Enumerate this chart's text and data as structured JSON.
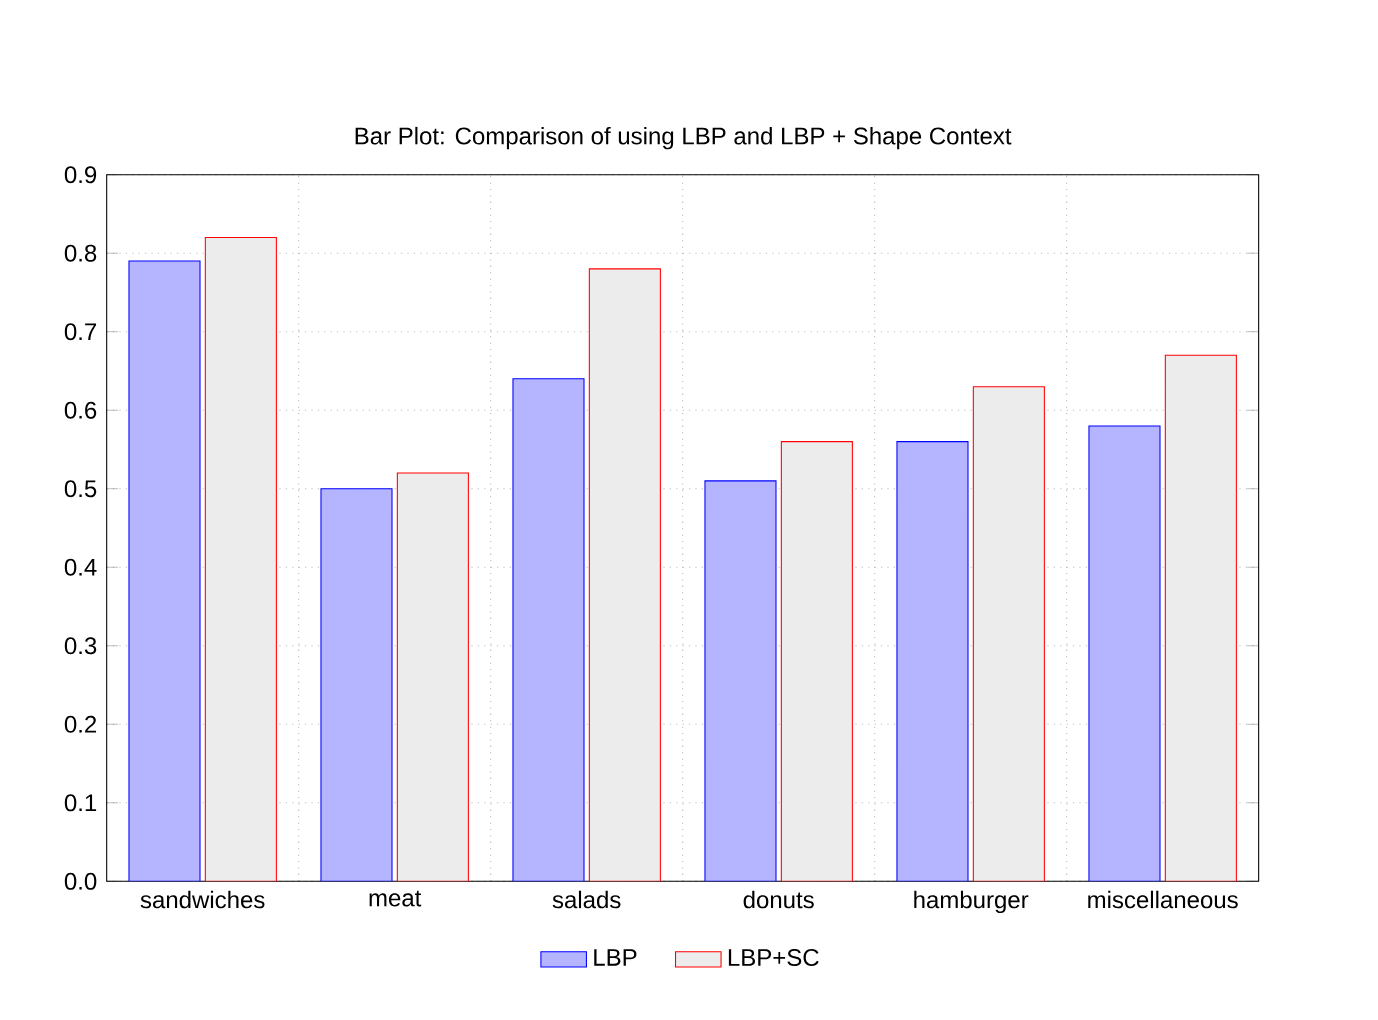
{
  "chart_data": {
    "type": "bar",
    "title": "Bar Plot: Comparison of using LBP and LBP + Shape Context",
    "categories": [
      "sandwiches",
      "meat",
      "salads",
      "donuts",
      "hamburger",
      "miscellaneous"
    ],
    "series": [
      {
        "name": "LBP",
        "color": "#b4b4ff",
        "values": [
          0.79,
          0.5,
          0.64,
          0.51,
          0.56,
          0.58
        ]
      },
      {
        "name": "LBP+SC",
        "color": "#ececec",
        "values": [
          0.82,
          0.52,
          0.78,
          0.56,
          0.63,
          0.67
        ]
      }
    ],
    "ylim": [
      0,
      0.9
    ],
    "yticks": [
      {
        "value": 0,
        "label": "0.0"
      },
      0.1,
      0.2,
      0.3,
      0.4,
      0.5,
      0.6,
      0.7,
      0.8,
      0.9
    ],
    "grid": true,
    "legend": "bottom"
  }
}
